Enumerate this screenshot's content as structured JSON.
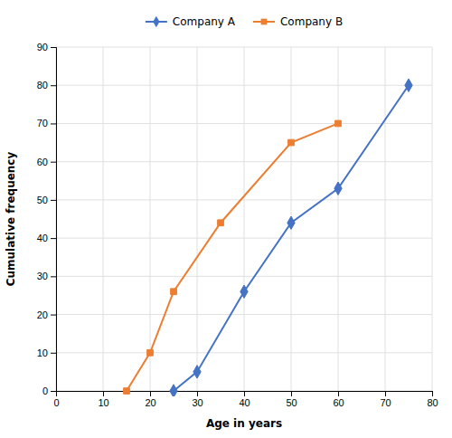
{
  "chart_data": {
    "type": "line",
    "xlabel": "Age in years",
    "ylabel": "Cumulative frequency",
    "series": [
      {
        "name": "Company A",
        "color": "#4472c4",
        "marker": "diamond",
        "x": [
          25,
          30,
          40,
          50,
          60,
          75
        ],
        "values": [
          0,
          5,
          26,
          44,
          53,
          80
        ]
      },
      {
        "name": "Company B",
        "color": "#ed7d31",
        "marker": "square",
        "x": [
          15,
          20,
          25,
          35,
          50,
          60
        ],
        "values": [
          0,
          10,
          26,
          44,
          65,
          70
        ]
      }
    ],
    "xlim": [
      0,
      80
    ],
    "ylim": [
      0,
      90
    ],
    "xticks": [
      0,
      10,
      20,
      30,
      40,
      50,
      60,
      70,
      80
    ],
    "yticks": [
      0,
      10,
      20,
      30,
      40,
      50,
      60,
      70,
      80,
      90
    ],
    "grid": true,
    "legend": "top"
  }
}
